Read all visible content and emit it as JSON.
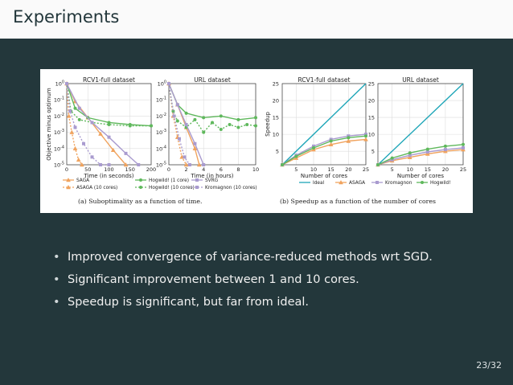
{
  "slide": {
    "title": "Experiments",
    "page_number": "23/32",
    "bullets": [
      "Improved convergence of variance-reduced methods wrt SGD.",
      "Significant improvement between 1 and 10 cores.",
      "Speedup is significant, but far from ideal."
    ]
  },
  "figure": {
    "caption_a": "(a) Suboptimality as a function of time.",
    "caption_b": "(b) Speedup as a function of the number of cores",
    "legend_a": [
      "SAGA",
      "Hogwild! (1 core)",
      "SVRG",
      "ASAGA (10 cores)",
      "Hogwild! (10 cores)",
      "Kromagnon (10 cores)"
    ],
    "legend_b": [
      "Ideal",
      "ASAGA",
      "Kromagnon",
      "Hogwild!"
    ],
    "colors": {
      "asaga": "#f0a35e",
      "hogwild": "#5fb85c",
      "kromagnon": "#a99bcf",
      "ideal": "#1fa6b8"
    }
  },
  "chart_data": [
    {
      "type": "line",
      "title": "RCV1-full dataset",
      "xlabel": "Time (in seconds)",
      "ylabel": "Objective minus optimum",
      "xlim": [
        0,
        200
      ],
      "x_ticks": [
        "0",
        "50",
        "100",
        "150",
        "200"
      ],
      "ylim": [
        1e-05,
        1
      ],
      "y_scale": "log",
      "y_ticks": [
        "10^0",
        "10^-1",
        "10^-2",
        "10^-3",
        "10^-4",
        "10^-5"
      ],
      "series": [
        {
          "name": "SAGA",
          "x": [
            0,
            20,
            50,
            80,
            110,
            140
          ],
          "y": [
            1,
            0.08,
            0.008,
            0.0008,
            8e-05,
            1e-05
          ]
        },
        {
          "name": "ASAGA (10 cores)",
          "x": [
            0,
            5,
            12,
            20,
            28,
            36
          ],
          "y": [
            1,
            0.01,
            0.001,
            0.0001,
            2e-05,
            1e-05
          ]
        },
        {
          "name": "Hogwild! (1 core)",
          "x": [
            0,
            20,
            50,
            100,
            150,
            200
          ],
          "y": [
            1,
            0.03,
            0.008,
            0.004,
            0.003,
            0.0025
          ]
        },
        {
          "name": "Hogwild! (10 cores)",
          "x": [
            0,
            10,
            30,
            60,
            100,
            150,
            200
          ],
          "y": [
            1,
            0.02,
            0.006,
            0.004,
            0.003,
            0.0025,
            0.0025
          ]
        },
        {
          "name": "SVRG",
          "x": [
            0,
            30,
            60,
            100,
            140,
            170
          ],
          "y": [
            1,
            0.03,
            0.004,
            0.0005,
            5e-05,
            1e-05
          ]
        },
        {
          "name": "Kromagnon (10 cores)",
          "x": [
            0,
            8,
            20,
            40,
            60,
            80,
            100
          ],
          "y": [
            1,
            0.02,
            0.002,
            0.0002,
            3e-05,
            1e-05,
            1e-05
          ]
        }
      ]
    },
    {
      "type": "line",
      "title": "URL dataset",
      "xlabel": "Time (in hours)",
      "ylabel": "",
      "xlim": [
        0,
        10
      ],
      "x_ticks": [
        "0",
        "2",
        "4",
        "6",
        "8",
        "10"
      ],
      "ylim": [
        1e-05,
        1
      ],
      "y_scale": "log",
      "y_ticks": [
        "10^0",
        "10^-1",
        "10^-2",
        "10^-3",
        "10^-4",
        "10^-5"
      ],
      "series": [
        {
          "name": "SAGA",
          "x": [
            0,
            1,
            2,
            3,
            3.5
          ],
          "y": [
            1,
            0.05,
            0.002,
            0.0001,
            1e-05
          ]
        },
        {
          "name": "ASAGA (10 cores)",
          "x": [
            0,
            0.5,
            1,
            1.5,
            2
          ],
          "y": [
            1,
            0.01,
            0.0005,
            3e-05,
            1e-05
          ]
        },
        {
          "name": "Hogwild! (1 core)",
          "x": [
            0,
            1,
            2,
            4,
            6,
            8,
            10
          ],
          "y": [
            1,
            0.05,
            0.015,
            0.008,
            0.01,
            0.006,
            0.008
          ]
        },
        {
          "name": "Hogwild! (10 cores)",
          "x": [
            0,
            0.5,
            1,
            2,
            3,
            4,
            5,
            6,
            7,
            8,
            9,
            10
          ],
          "y": [
            1,
            0.02,
            0.005,
            0.002,
            0.006,
            0.001,
            0.004,
            0.0015,
            0.003,
            0.002,
            0.003,
            0.0025
          ]
        },
        {
          "name": "SVRG",
          "x": [
            0,
            1,
            2,
            3,
            4
          ],
          "y": [
            1,
            0.05,
            0.003,
            0.0002,
            1e-05
          ]
        },
        {
          "name": "Kromagnon (10 cores)",
          "x": [
            0,
            0.6,
            1.2,
            1.8,
            2.4
          ],
          "y": [
            1,
            0.01,
            0.0004,
            3e-05,
            1e-05
          ]
        }
      ]
    },
    {
      "type": "line",
      "title": "RCV1-full dataset",
      "xlabel": "Number of cores",
      "ylabel": "Speedup",
      "xlim": [
        1,
        25
      ],
      "x_ticks": [
        "5",
        "10",
        "15",
        "20",
        "25"
      ],
      "ylim": [
        1,
        25
      ],
      "y_ticks": [
        "5",
        "10",
        "15",
        "20",
        "25"
      ],
      "series": [
        {
          "name": "Ideal",
          "x": [
            1,
            25
          ],
          "y": [
            1,
            25
          ]
        },
        {
          "name": "ASAGA",
          "x": [
            1,
            5,
            10,
            15,
            20,
            25
          ],
          "y": [
            1,
            3,
            5.5,
            7,
            8,
            8.5
          ]
        },
        {
          "name": "Kromagnon",
          "x": [
            1,
            5,
            10,
            15,
            20,
            25
          ],
          "y": [
            1,
            3.8,
            6.5,
            8.5,
            9.5,
            10
          ]
        },
        {
          "name": "Hogwild!",
          "x": [
            1,
            5,
            10,
            15,
            20,
            25
          ],
          "y": [
            1,
            3.5,
            6,
            8,
            9,
            9.5
          ]
        }
      ]
    },
    {
      "type": "line",
      "title": "URL dataset",
      "xlabel": "Number of cores",
      "ylabel": "",
      "xlim": [
        1,
        25
      ],
      "x_ticks": [
        "5",
        "10",
        "15",
        "20",
        "25"
      ],
      "ylim": [
        1,
        25
      ],
      "y_ticks": [
        "5",
        "10",
        "15",
        "20",
        "25"
      ],
      "series": [
        {
          "name": "Ideal",
          "x": [
            1,
            25
          ],
          "y": [
            1,
            25
          ]
        },
        {
          "name": "ASAGA",
          "x": [
            1,
            5,
            10,
            15,
            20,
            25
          ],
          "y": [
            1,
            2.2,
            3.2,
            4.2,
            5,
            5.5
          ]
        },
        {
          "name": "Kromagnon",
          "x": [
            1,
            5,
            10,
            15,
            20,
            25
          ],
          "y": [
            1,
            2.5,
            3.8,
            4.8,
            5.5,
            6
          ]
        },
        {
          "name": "Hogwild!",
          "x": [
            1,
            5,
            10,
            15,
            20,
            25
          ],
          "y": [
            1,
            3,
            4.5,
            5.6,
            6.5,
            7
          ]
        }
      ]
    }
  ]
}
